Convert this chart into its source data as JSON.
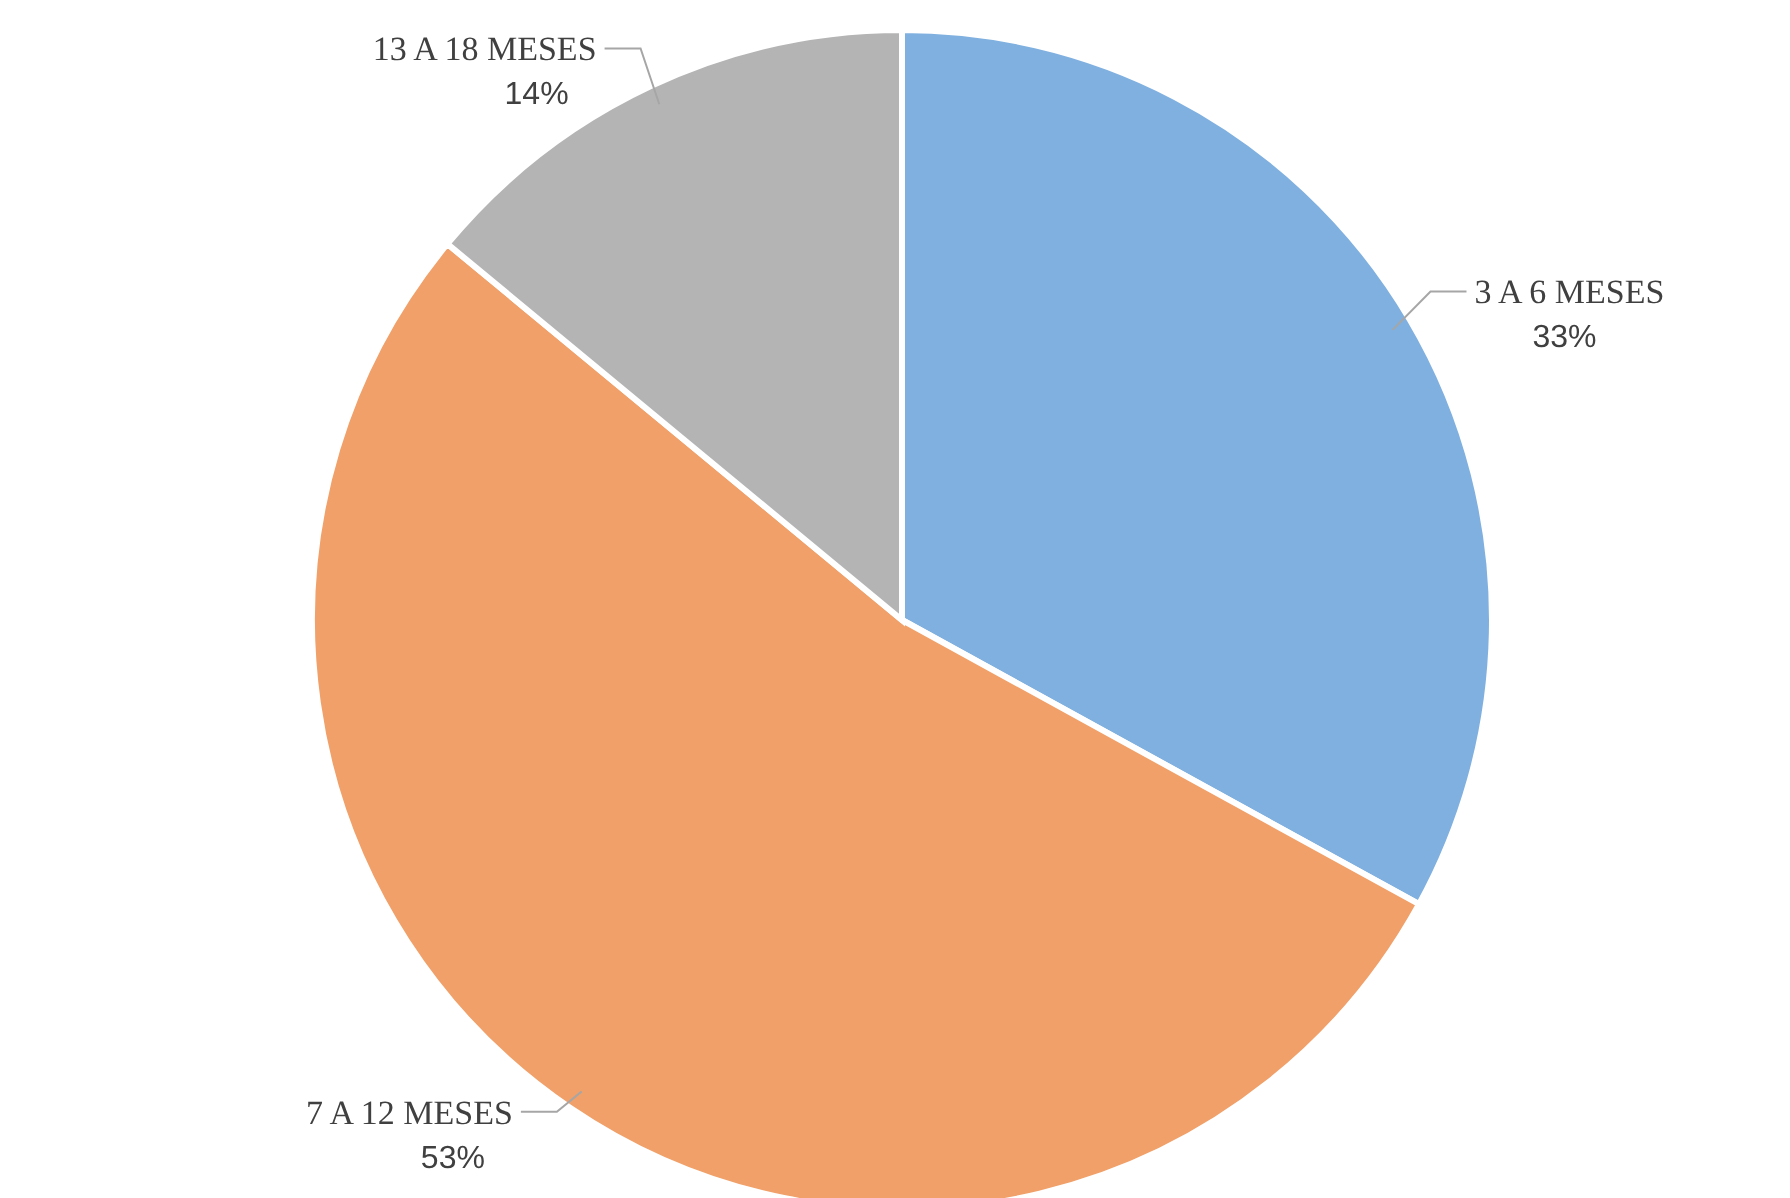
{
  "chart_data": {
    "type": "pie",
    "categories": [
      "3 A 6 MESES",
      "7 A 12 MESES",
      "13 A 18 MESES"
    ],
    "values": [
      33,
      53,
      14
    ],
    "colors": [
      "#7fb0e0",
      "#f0a068",
      "#b4b4b4"
    ],
    "value_labels": [
      "33%",
      "53%",
      "14%"
    ],
    "legend": false
  }
}
